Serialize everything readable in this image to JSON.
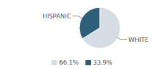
{
  "chart_data": {
    "type": "pie",
    "categories": [
      "WHITE",
      "HISPANIC"
    ],
    "values": [
      66.1,
      33.9
    ],
    "value_labels": [
      "66.1%",
      "33.9%"
    ],
    "colors": [
      "#d6dce4",
      "#2e5f7a"
    ],
    "legend": "bottom"
  }
}
